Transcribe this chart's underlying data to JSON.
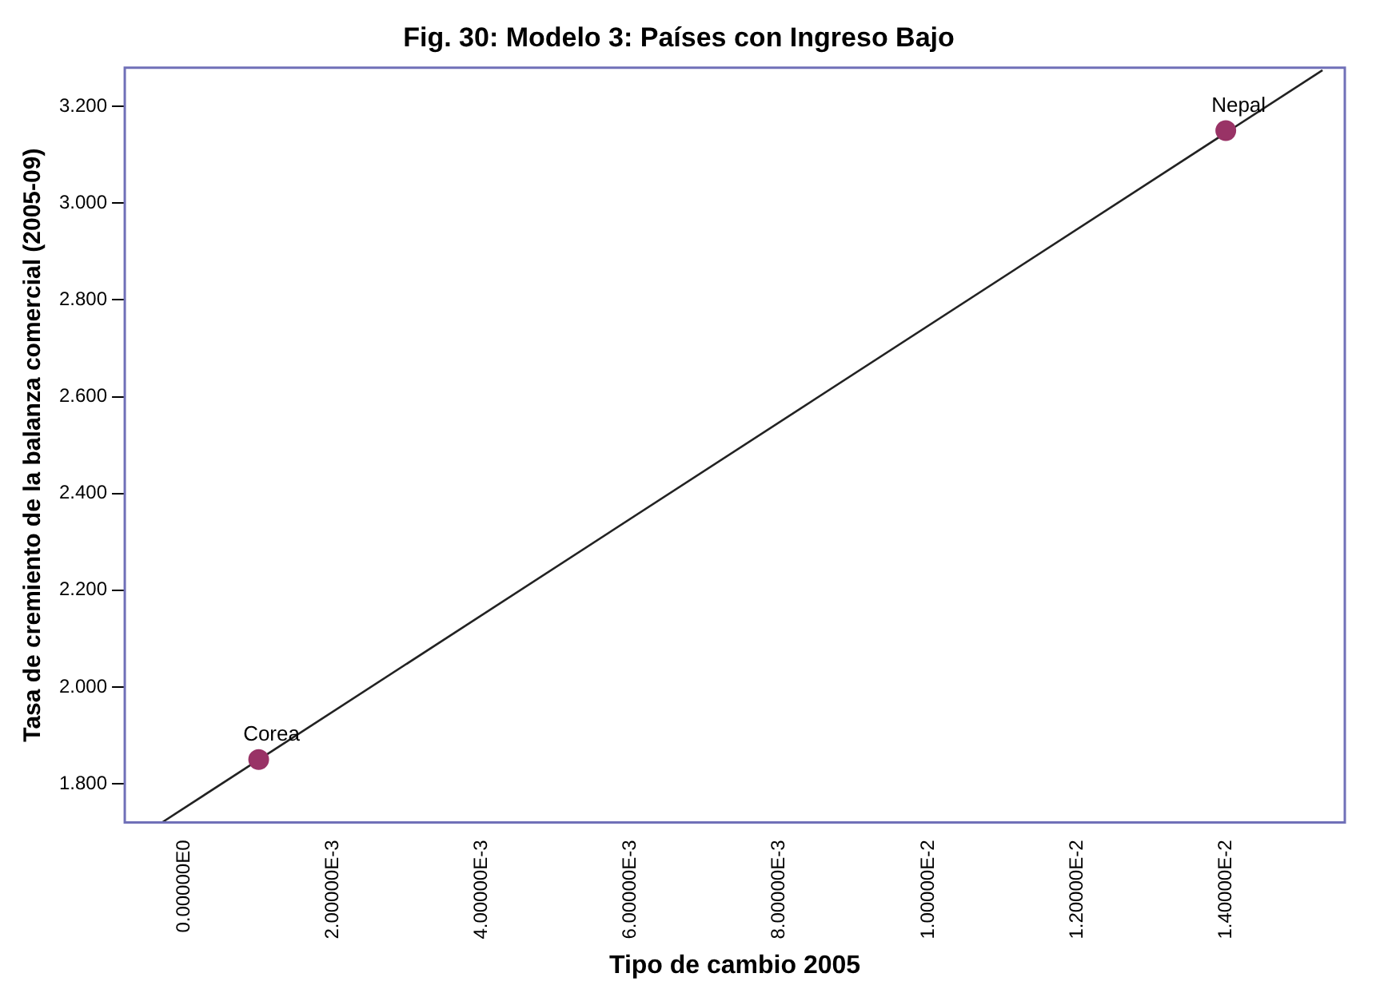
{
  "chart_data": {
    "type": "scatter",
    "title": "Fig. 30: Modelo 3: Países con Ingreso Bajo",
    "xlabel": "Tipo de cambio 2005",
    "ylabel": "Tasa de cremiento de la balanza comercial (2005-09)",
    "series": [
      {
        "color": "#993366",
        "x": [
          0.001,
          0.014
        ],
        "values": [
          1.85,
          3.15
        ],
        "marker": "circle"
      },
      {
        "type": "line",
        "color": "#222222",
        "x": [
          -0.0003,
          0.0153
        ],
        "values": [
          1.72,
          3.275
        ],
        "marker": "none",
        "line_style": "solid"
      }
    ],
    "annotations": [
      {
        "text": "Corea",
        "x": 0.001,
        "y": 1.85
      },
      {
        "text": "Nepal",
        "x": 0.014,
        "y": 3.15
      }
    ],
    "xlim": [
      -0.0008,
      0.0156
    ],
    "ylim": [
      1.72,
      3.28
    ],
    "xticks": [
      {
        "value": 0,
        "label": "0.00000E0"
      },
      {
        "value": 0.002,
        "label": "2.00000E-3"
      },
      {
        "value": 0.004,
        "label": "4.00000E-3"
      },
      {
        "value": 0.006,
        "label": "6.00000E-3"
      },
      {
        "value": 0.008,
        "label": "8.00000E-3"
      },
      {
        "value": 0.01,
        "label": "1.00000E-2"
      },
      {
        "value": 0.012,
        "label": "1.20000E-2"
      },
      {
        "value": 0.014,
        "label": "1.40000E-2"
      }
    ],
    "yticks": [
      {
        "value": 1.8,
        "label": "1.800"
      },
      {
        "value": 2,
        "label": "2.000"
      },
      {
        "value": 2.2,
        "label": "2.200"
      },
      {
        "value": 2.4,
        "label": "2.400"
      },
      {
        "value": 2.6,
        "label": "2.600"
      },
      {
        "value": 2.8,
        "label": "2.800"
      },
      {
        "value": 3,
        "label": "3.000"
      },
      {
        "value": 3.2,
        "label": "3.200"
      }
    ],
    "grid": false,
    "legend": false
  }
}
